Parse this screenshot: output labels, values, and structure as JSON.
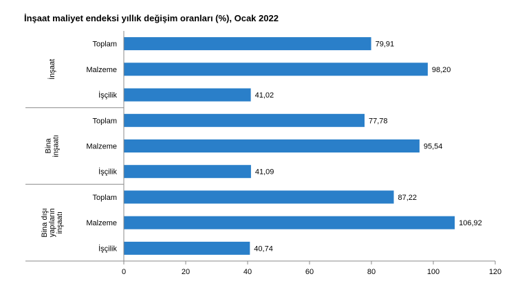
{
  "chart_data": {
    "type": "bar",
    "orientation": "horizontal",
    "title": "İnşaat maliyet endeksi yıllık değişim oranları (%), Ocak 2022",
    "xlabel": "",
    "ylabel": "",
    "xlim": [
      0,
      120
    ],
    "xticks": [
      0,
      20,
      40,
      60,
      80,
      100,
      120
    ],
    "grid": false,
    "legend": "none",
    "bar_color": "#2a7fc9",
    "groups": [
      {
        "name": "İnşaat",
        "name_lines": [
          "İnşaat"
        ],
        "categories": [
          "Toplam",
          "Malzeme",
          "İşçilik"
        ],
        "values": [
          79.91,
          98.2,
          41.02
        ],
        "labels": [
          "79,91",
          "98,20",
          "41,02"
        ]
      },
      {
        "name": "Bina inşaatı",
        "name_lines": [
          "Bina",
          "inşaatı"
        ],
        "categories": [
          "Toplam",
          "Malzeme",
          "İşçilik"
        ],
        "values": [
          77.78,
          95.54,
          41.09
        ],
        "labels": [
          "77,78",
          "95,54",
          "41,09"
        ]
      },
      {
        "name": "Bina dışı yapıların inşaatı",
        "name_lines": [
          "Bina dışı",
          "yapıların",
          "inşaatı"
        ],
        "categories": [
          "Toplam",
          "Malzeme",
          "İşçilik"
        ],
        "values": [
          87.22,
          106.92,
          40.74
        ],
        "labels": [
          "87,22",
          "106,92",
          "40,74"
        ]
      }
    ]
  }
}
